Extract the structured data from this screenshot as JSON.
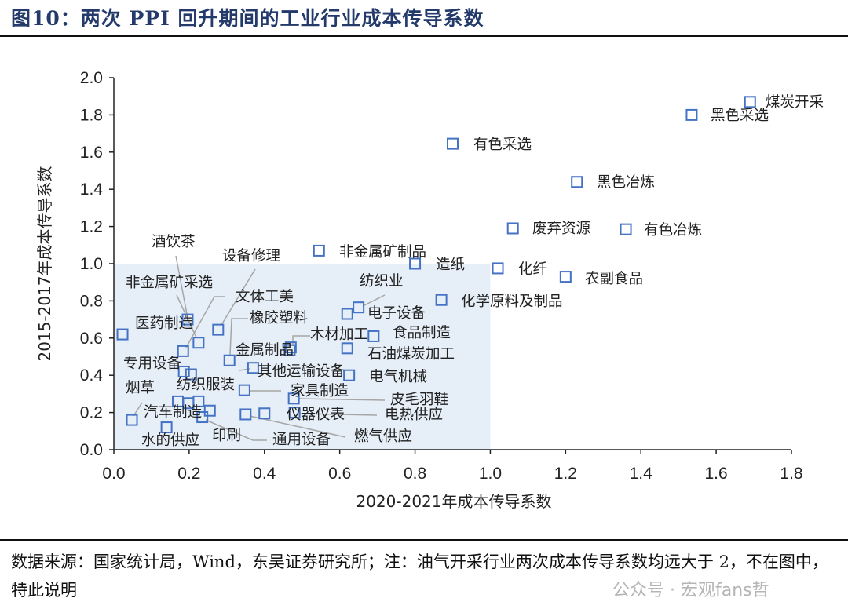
{
  "title": "图10：两次 PPI 回升期间的工业行业成本传导系数",
  "source": "数据来源：国家统计局，Wind，东吴证券研究所；注：油气开采行业两次成本传导系数均远大于 2，不在图中，特此说明",
  "watermark": "公众号 · 宏观fans哲",
  "chart_data": {
    "type": "scatter",
    "xlabel": "2020-2021年成本传导系数",
    "ylabel": "2015-2017年成本传导系数",
    "xlim": [
      0,
      1.8
    ],
    "ylim": [
      0,
      2.0
    ],
    "xticks": [
      "0.0",
      "0.2",
      "0.4",
      "0.6",
      "0.8",
      "1.0",
      "1.2",
      "1.4",
      "1.6",
      "1.8"
    ],
    "yticks": [
      "0.0",
      "0.2",
      "0.4",
      "0.6",
      "0.8",
      "1.0",
      "1.2",
      "1.4",
      "1.6",
      "1.8",
      "2.0"
    ],
    "highlight_region": {
      "x": [
        0,
        1.0
      ],
      "y": [
        0,
        1.0
      ],
      "color": "#e6eef7"
    },
    "marker_color": "#4472c4",
    "points": [
      {
        "name": "煤炭开采",
        "x": 1.69,
        "y": 1.87
      },
      {
        "name": "黑色采选",
        "x": 1.535,
        "y": 1.8
      },
      {
        "name": "有色采选",
        "x": 0.9,
        "y": 1.645
      },
      {
        "name": "黑色冶炼",
        "x": 1.23,
        "y": 1.44
      },
      {
        "name": "废弃资源",
        "x": 1.06,
        "y": 1.19
      },
      {
        "name": "有色冶炼",
        "x": 1.36,
        "y": 1.185
      },
      {
        "name": "非金属矿制品",
        "x": 0.545,
        "y": 1.07
      },
      {
        "name": "造纸",
        "x": 0.8,
        "y": 1.0
      },
      {
        "name": "化纤",
        "x": 1.02,
        "y": 0.975
      },
      {
        "name": "农副食品",
        "x": 1.2,
        "y": 0.93
      },
      {
        "name": "化学原料及制品",
        "x": 0.87,
        "y": 0.805
      },
      {
        "name": "纺织业",
        "x": 0.65,
        "y": 0.765
      },
      {
        "name": "电子设备",
        "x": 0.62,
        "y": 0.73
      },
      {
        "name": "食品制造",
        "x": 0.69,
        "y": 0.61
      },
      {
        "name": "石油煤炭加工",
        "x": 0.62,
        "y": 0.545
      },
      {
        "name": "电气机械",
        "x": 0.625,
        "y": 0.4
      },
      {
        "name": "木材加工",
        "x": 0.47,
        "y": 0.55
      },
      {
        "name": "金属制品",
        "x": 0.467,
        "y": 0.535
      },
      {
        "name": "橡胶塑料",
        "x": 0.307,
        "y": 0.48
      },
      {
        "name": "设备修理",
        "x": 0.277,
        "y": 0.645
      },
      {
        "name": "文体工美",
        "x": 0.184,
        "y": 0.53
      },
      {
        "name": "酒饮茶",
        "x": 0.196,
        "y": 0.7
      },
      {
        "name": "非金属矿采选",
        "x": 0.225,
        "y": 0.575
      },
      {
        "name": "医药制造",
        "x": 0.023,
        "y": 0.62
      },
      {
        "name": "专用设备",
        "x": 0.186,
        "y": 0.42
      },
      {
        "name": "纺织服装",
        "x": 0.205,
        "y": 0.405
      },
      {
        "name": "其他运输设备",
        "x": 0.37,
        "y": 0.44
      },
      {
        "name": "家具制造",
        "x": 0.347,
        "y": 0.32
      },
      {
        "name": "皮毛羽鞋",
        "x": 0.478,
        "y": 0.275
      },
      {
        "name": "仪器仪表",
        "x": 0.4,
        "y": 0.195
      },
      {
        "name": "电热供应",
        "x": 0.48,
        "y": 0.2
      },
      {
        "name": "燃气供应",
        "x": 0.35,
        "y": 0.19
      },
      {
        "name": "通用设备",
        "x": 0.235,
        "y": 0.175
      },
      {
        "name": "印刷",
        "x": 0.255,
        "y": 0.21
      },
      {
        "name": "汽车制造",
        "x": 0.198,
        "y": 0.25
      },
      {
        "name": "烟草",
        "x": 0.048,
        "y": 0.16
      },
      {
        "name": "水的供应",
        "x": 0.14,
        "y": 0.12
      },
      {
        "name": "",
        "x": 0.17,
        "y": 0.26
      },
      {
        "name": "",
        "x": 0.225,
        "y": 0.26
      }
    ]
  }
}
